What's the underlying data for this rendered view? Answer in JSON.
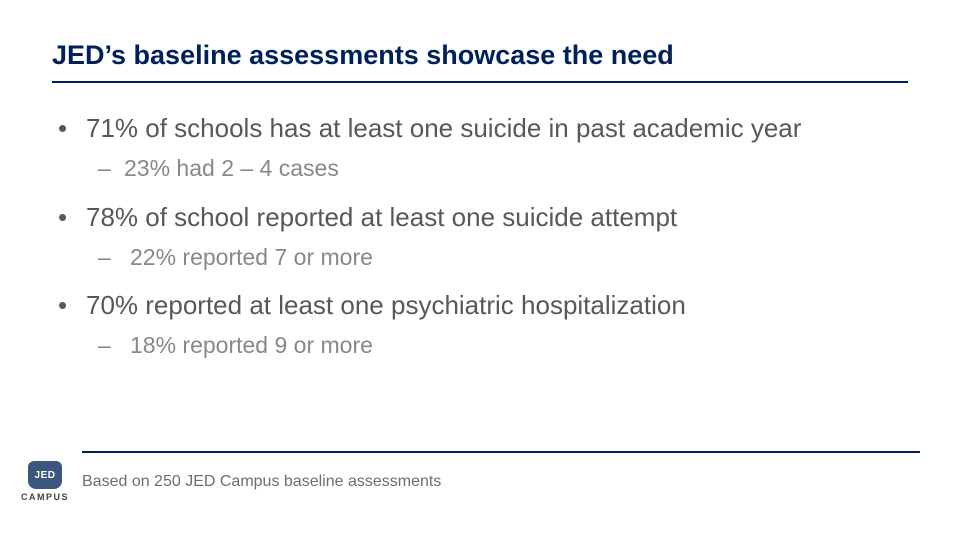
{
  "colors": {
    "title": "#00205b",
    "rule": "#00205b",
    "body": "#585858",
    "sub": "#888888",
    "logo_badge_bg": "#3b567e",
    "logo_text": "#444444",
    "footnote": "#6d6d6d",
    "background": "#ffffff"
  },
  "typography": {
    "title_fontsize": 27,
    "bullet_l1_fontsize": 26,
    "bullet_l2_fontsize": 23,
    "footnote_fontsize": 16,
    "logo_badge_fontsize": 10,
    "logo_text_fontsize": 9
  },
  "title": "JED’s baseline assessments showcase the need",
  "bullets": [
    {
      "level": 1,
      "text": "71% of schools has at least one suicide in past academic year"
    },
    {
      "level": 2,
      "text": "23% had 2 – 4 cases"
    },
    {
      "level": 1,
      "text": "78% of school reported at least one suicide attempt"
    },
    {
      "level": 2,
      "text": "22% reported 7 or more"
    },
    {
      "level": 1,
      "text": "70% reported at least one psychiatric hospitalization"
    },
    {
      "level": 2,
      "text": "18% reported 9 or more"
    }
  ],
  "logo": {
    "badge_text": "JED",
    "sub_text": "CAMPUS"
  },
  "footnote": "Based on 250 JED Campus baseline assessments"
}
